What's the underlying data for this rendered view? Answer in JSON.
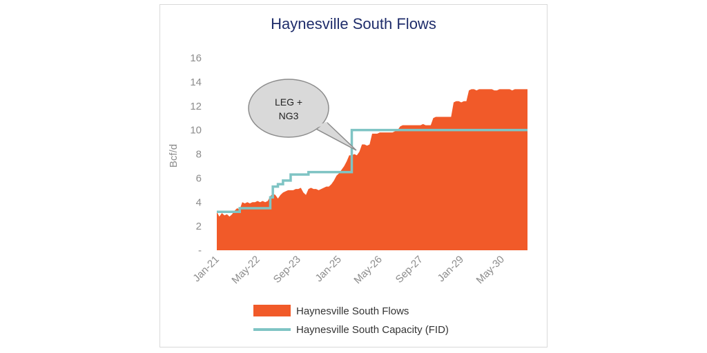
{
  "chart_data": {
    "type": "area",
    "title": "Haynesville South Flows",
    "ylabel": "Bcf/d",
    "xlabel": "",
    "ylim": [
      0,
      16
    ],
    "y_ticks": [
      0,
      2,
      4,
      6,
      8,
      10,
      12,
      14,
      16
    ],
    "y_tick_labels": [
      "-",
      "2",
      "4",
      "6",
      "8",
      "10",
      "12",
      "14",
      "16"
    ],
    "x_range": [
      "2021-01",
      "2031-03"
    ],
    "x_tick_labels": [
      "Jan-21",
      "May-22",
      "Sep-23",
      "Jan-25",
      "May-26",
      "Sep-27",
      "Jan-29",
      "May-30"
    ],
    "x_tick_dates": [
      "2021-01",
      "2022-05",
      "2023-09",
      "2025-01",
      "2026-05",
      "2027-09",
      "2029-01",
      "2030-05"
    ],
    "grid": false,
    "legend_position": "bottom",
    "annotation": {
      "text_lines": [
        "LEG +",
        "NG3"
      ],
      "points_to": [
        "2025-06",
        9.9
      ]
    },
    "series": [
      {
        "name": "Haynesville South Flows",
        "type": "area",
        "color": "#f15a29",
        "points": [
          [
            "2021-01",
            3.2
          ],
          [
            "2021-02",
            2.8
          ],
          [
            "2021-03",
            3.1
          ],
          [
            "2021-04",
            2.9
          ],
          [
            "2021-05",
            3.0
          ],
          [
            "2021-06",
            2.8
          ],
          [
            "2021-07",
            3.0
          ],
          [
            "2021-08",
            3.3
          ],
          [
            "2021-09",
            3.5
          ],
          [
            "2021-10",
            3.4
          ],
          [
            "2021-11",
            4.0
          ],
          [
            "2021-12",
            3.9
          ],
          [
            "2022-01",
            4.0
          ],
          [
            "2022-02",
            3.9
          ],
          [
            "2022-03",
            4.0
          ],
          [
            "2022-04",
            4.0
          ],
          [
            "2022-05",
            4.1
          ],
          [
            "2022-06",
            4.0
          ],
          [
            "2022-07",
            4.1
          ],
          [
            "2022-08",
            4.0
          ],
          [
            "2022-09",
            4.1
          ],
          [
            "2022-10",
            4.5
          ],
          [
            "2022-11",
            4.7
          ],
          [
            "2022-12",
            4.6
          ],
          [
            "2023-01",
            4.3
          ],
          [
            "2023-02",
            4.6
          ],
          [
            "2023-03",
            4.8
          ],
          [
            "2023-04",
            4.9
          ],
          [
            "2023-05",
            5.0
          ],
          [
            "2023-06",
            5.0
          ],
          [
            "2023-07",
            5.0
          ],
          [
            "2023-08",
            5.1
          ],
          [
            "2023-09",
            5.1
          ],
          [
            "2023-10",
            5.2
          ],
          [
            "2023-11",
            4.8
          ],
          [
            "2023-12",
            4.6
          ],
          [
            "2024-01",
            5.1
          ],
          [
            "2024-02",
            5.2
          ],
          [
            "2024-03",
            5.1
          ],
          [
            "2024-04",
            5.1
          ],
          [
            "2024-05",
            5.0
          ],
          [
            "2024-06",
            5.1
          ],
          [
            "2024-07",
            5.2
          ],
          [
            "2024-08",
            5.3
          ],
          [
            "2024-09",
            5.3
          ],
          [
            "2024-10",
            5.5
          ],
          [
            "2024-11",
            5.8
          ],
          [
            "2024-12",
            6.2
          ],
          [
            "2025-01",
            6.4
          ],
          [
            "2025-02",
            6.7
          ],
          [
            "2025-03",
            7.0
          ],
          [
            "2025-04",
            7.4
          ],
          [
            "2025-05",
            7.9
          ],
          [
            "2025-06",
            7.9
          ],
          [
            "2025-07",
            8.0
          ],
          [
            "2025-08",
            7.9
          ],
          [
            "2025-09",
            8.2
          ],
          [
            "2025-10",
            8.8
          ],
          [
            "2025-11",
            8.8
          ],
          [
            "2025-12",
            8.7
          ],
          [
            "2026-01",
            8.8
          ],
          [
            "2026-02",
            9.7
          ],
          [
            "2026-03",
            9.7
          ],
          [
            "2026-04",
            9.7
          ],
          [
            "2026-05",
            9.8
          ],
          [
            "2026-06",
            9.8
          ],
          [
            "2026-07",
            9.8
          ],
          [
            "2026-08",
            9.8
          ],
          [
            "2026-09",
            9.8
          ],
          [
            "2026-10",
            9.8
          ],
          [
            "2026-11",
            9.9
          ],
          [
            "2026-12",
            10.0
          ],
          [
            "2027-01",
            10.3
          ],
          [
            "2027-02",
            10.4
          ],
          [
            "2027-03",
            10.4
          ],
          [
            "2027-04",
            10.4
          ],
          [
            "2027-05",
            10.4
          ],
          [
            "2027-06",
            10.4
          ],
          [
            "2027-07",
            10.4
          ],
          [
            "2027-08",
            10.4
          ],
          [
            "2027-09",
            10.4
          ],
          [
            "2027-10",
            10.5
          ],
          [
            "2027-11",
            10.4
          ],
          [
            "2027-12",
            10.4
          ],
          [
            "2028-01",
            10.4
          ],
          [
            "2028-02",
            11.0
          ],
          [
            "2028-03",
            11.1
          ],
          [
            "2028-04",
            11.1
          ],
          [
            "2028-05",
            11.1
          ],
          [
            "2028-06",
            11.1
          ],
          [
            "2028-07",
            11.1
          ],
          [
            "2028-08",
            11.1
          ],
          [
            "2028-09",
            11.1
          ],
          [
            "2028-10",
            12.3
          ],
          [
            "2028-11",
            12.4
          ],
          [
            "2028-12",
            12.4
          ],
          [
            "2029-01",
            12.3
          ],
          [
            "2029-02",
            12.4
          ],
          [
            "2029-03",
            12.4
          ],
          [
            "2029-04",
            13.3
          ],
          [
            "2029-05",
            13.4
          ],
          [
            "2029-06",
            13.4
          ],
          [
            "2029-07",
            13.3
          ],
          [
            "2029-08",
            13.4
          ],
          [
            "2029-09",
            13.4
          ],
          [
            "2029-10",
            13.4
          ],
          [
            "2029-11",
            13.4
          ],
          [
            "2029-12",
            13.4
          ],
          [
            "2030-01",
            13.4
          ],
          [
            "2030-02",
            13.3
          ],
          [
            "2030-03",
            13.3
          ],
          [
            "2030-04",
            13.4
          ],
          [
            "2030-05",
            13.4
          ],
          [
            "2030-06",
            13.4
          ],
          [
            "2030-07",
            13.4
          ],
          [
            "2030-08",
            13.4
          ],
          [
            "2030-09",
            13.3
          ],
          [
            "2030-10",
            13.4
          ],
          [
            "2030-11",
            13.4
          ],
          [
            "2030-12",
            13.4
          ],
          [
            "2031-01",
            13.4
          ],
          [
            "2031-02",
            13.4
          ],
          [
            "2031-03",
            13.4
          ]
        ]
      },
      {
        "name": "Haynesville South Capacity (FID)",
        "type": "step-line",
        "color": "#7fc4c4",
        "points": [
          [
            "2021-01",
            3.2
          ],
          [
            "2021-10",
            3.2
          ],
          [
            "2021-10",
            3.5
          ],
          [
            "2022-10",
            3.5
          ],
          [
            "2022-10",
            4.4
          ],
          [
            "2022-11",
            4.4
          ],
          [
            "2022-11",
            5.3
          ],
          [
            "2023-01",
            5.3
          ],
          [
            "2023-01",
            5.5
          ],
          [
            "2023-03",
            5.5
          ],
          [
            "2023-03",
            5.8
          ],
          [
            "2023-06",
            5.8
          ],
          [
            "2023-06",
            6.3
          ],
          [
            "2024-01",
            6.3
          ],
          [
            "2024-01",
            6.5
          ],
          [
            "2025-06",
            6.5
          ],
          [
            "2025-06",
            10.0
          ],
          [
            "2031-03",
            10.0
          ]
        ]
      }
    ]
  },
  "legend": {
    "flows_label": "Haynesville South Flows",
    "capacity_label": "Haynesville South Capacity (FID)"
  }
}
